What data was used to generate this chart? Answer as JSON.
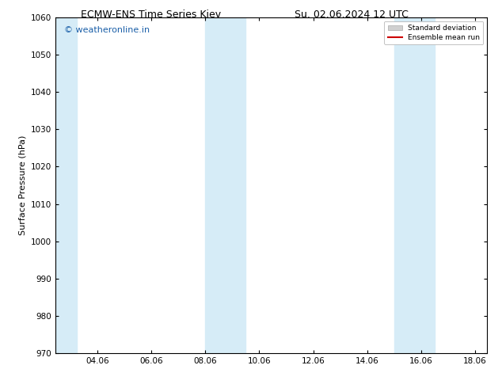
{
  "title_left": "ECMW-ENS Time Series Kiev",
  "title_right": "Su. 02.06.2024 12 UTC",
  "ylabel": "Surface Pressure (hPa)",
  "xlim": [
    2.5,
    18.5
  ],
  "ylim": [
    970,
    1060
  ],
  "yticks": [
    970,
    980,
    990,
    1000,
    1010,
    1020,
    1030,
    1040,
    1050,
    1060
  ],
  "xtick_labels": [
    "04.06",
    "06.06",
    "08.06",
    "10.06",
    "12.06",
    "14.06",
    "16.06",
    "18.06"
  ],
  "xtick_positions": [
    4.06,
    6.06,
    8.06,
    10.06,
    12.06,
    14.06,
    16.06,
    18.06
  ],
  "shaded_bands": [
    {
      "x_start": 2.5,
      "x_end": 3.3
    },
    {
      "x_start": 8.06,
      "x_end": 9.56
    },
    {
      "x_start": 15.06,
      "x_end": 16.56
    }
  ],
  "shade_color": "#d6ecf7",
  "background_color": "#ffffff",
  "watermark_text": "© weatheronline.in",
  "watermark_color": "#1a5fa8",
  "legend_std_label": "Standard deviation",
  "legend_ens_label": "Ensemble mean run",
  "legend_std_color": "#d0d0d0",
  "legend_ens_color": "#cc0000",
  "title_fontsize": 9,
  "axis_label_fontsize": 8,
  "tick_fontsize": 7.5,
  "watermark_fontsize": 8
}
